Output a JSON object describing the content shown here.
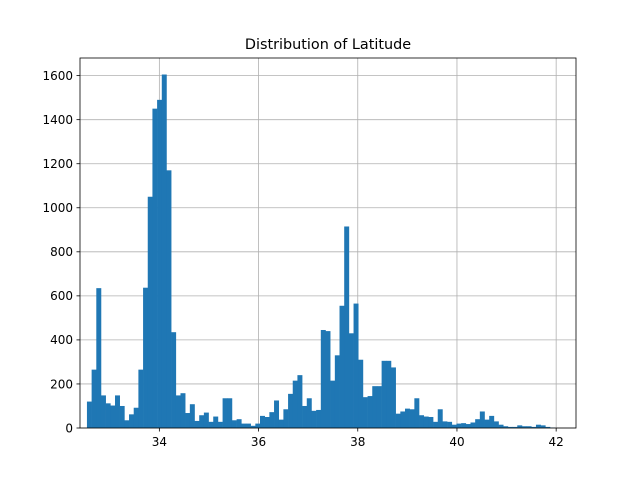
{
  "chart_data": {
    "type": "bar",
    "subtype": "histogram",
    "title": "Distribution of Latitude",
    "xlabel": "",
    "ylabel": "",
    "xlim": [
      32.4,
      42.4
    ],
    "ylim": [
      0,
      1680
    ],
    "xticks": [
      34,
      36,
      38,
      40,
      42
    ],
    "yticks": [
      0,
      200,
      400,
      600,
      800,
      1000,
      1200,
      1400,
      1600
    ],
    "grid": true,
    "bar_color": "#1f77b4",
    "bin_start": 32.54,
    "bin_width": 0.0943,
    "values": [
      120,
      265,
      635,
      148,
      112,
      102,
      148,
      100,
      35,
      62,
      92,
      265,
      637,
      1050,
      1450,
      1490,
      1605,
      1170,
      435,
      148,
      158,
      68,
      108,
      32,
      58,
      70,
      28,
      52,
      28,
      135,
      135,
      35,
      40,
      20,
      20,
      10,
      20,
      55,
      50,
      72,
      125,
      38,
      85,
      155,
      215,
      240,
      100,
      135,
      78,
      82,
      445,
      440,
      215,
      330,
      555,
      915,
      430,
      565,
      310,
      140,
      145,
      190,
      190,
      305,
      305,
      275,
      65,
      75,
      88,
      85,
      135,
      58,
      52,
      50,
      28,
      85,
      30,
      28,
      15,
      20,
      22,
      18,
      25,
      40,
      75,
      38,
      55,
      30,
      15,
      8,
      5,
      5,
      12,
      8,
      8,
      5,
      15,
      12,
      5,
      2
    ]
  }
}
